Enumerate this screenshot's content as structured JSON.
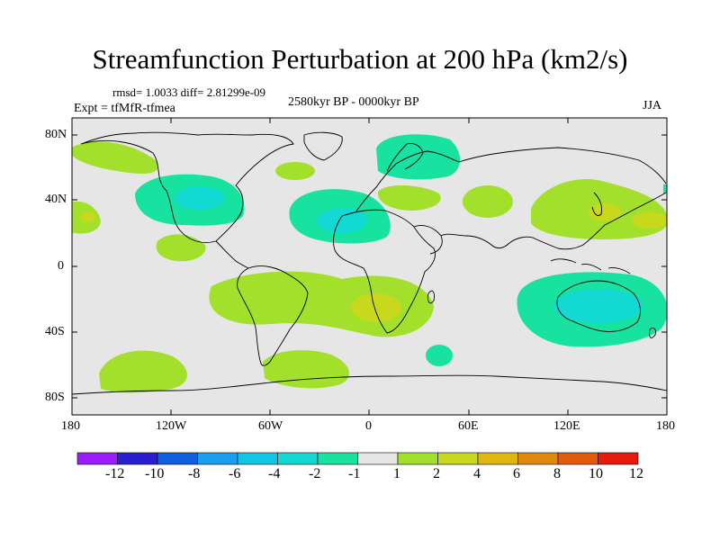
{
  "title": "Streamfunction Perturbation at 200 hPa (km2/s)",
  "stats": "rmsd= 1.0033 diff= 2.81299e-09",
  "experiment": "Expt = tfMfR-tfmea",
  "period": "2580kyr BP - 0000kyr BP",
  "season": "JJA",
  "lat_labels": [
    "80N",
    "40N",
    "0",
    "40S",
    "80S"
  ],
  "lon_labels": [
    "180",
    "120W",
    "60W",
    "0",
    "60E",
    "120E",
    "180"
  ],
  "colorbar": {
    "labels": [
      "-12",
      "-10",
      "-8",
      "-6",
      "-4",
      "-2",
      "-1",
      "1",
      "2",
      "4",
      "6",
      "8",
      "10",
      "12"
    ],
    "colors": [
      "#9b1eff",
      "#2a1fcf",
      "#0f5fe0",
      "#1a9ef0",
      "#10c6e6",
      "#12d9d2",
      "#18e2a0",
      "#e6e6e6",
      "#a2e02c",
      "#c8d81c",
      "#e0b610",
      "#e08a0c",
      "#e25a0a",
      "#e81a0a"
    ]
  },
  "colors": {
    "background": "#e6e6e6",
    "pos1": "#a2e02c",
    "pos2": "#c8d81c",
    "neg1": "#18e2a0",
    "neg2": "#12d9d2"
  }
}
